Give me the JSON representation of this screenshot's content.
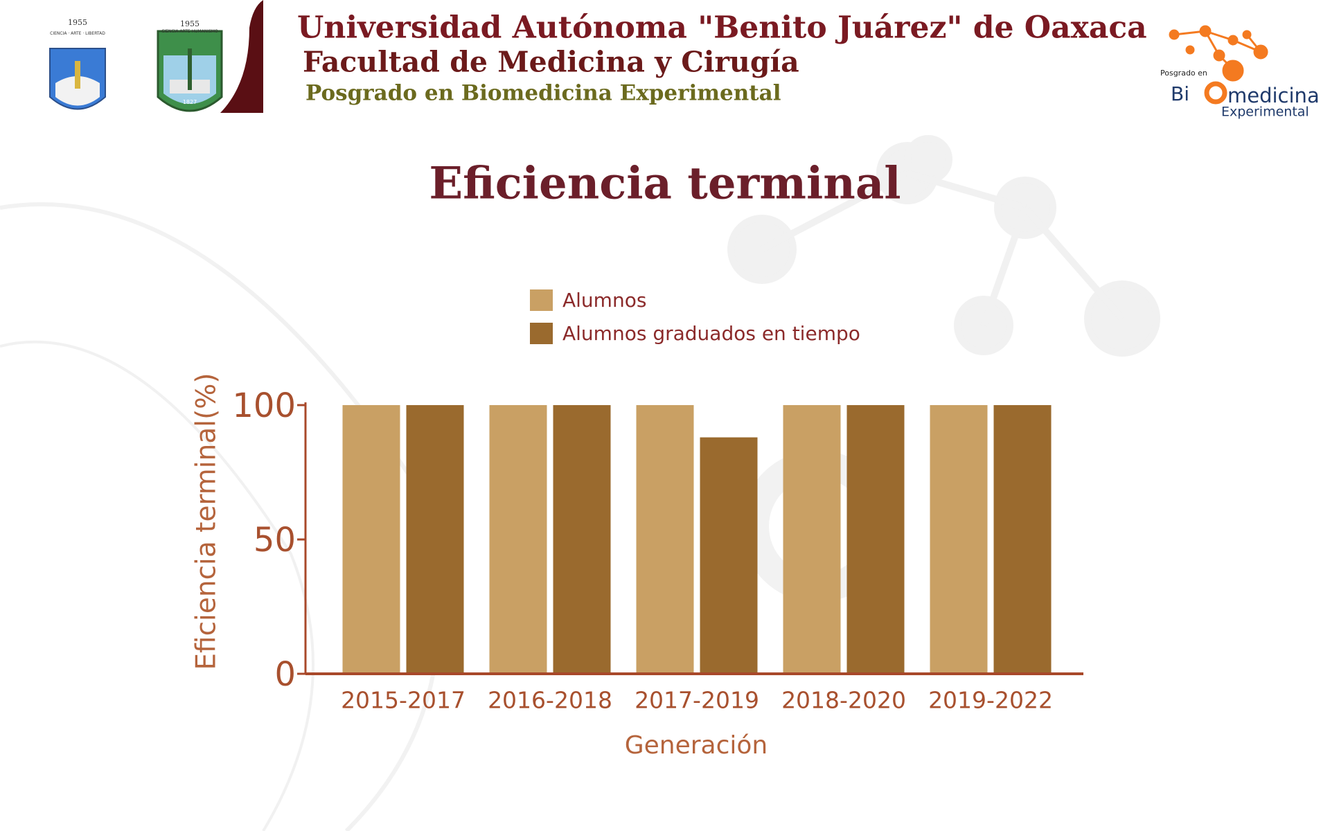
{
  "header": {
    "university": "Universidad Autónoma \"Benito Juárez\" de Oaxaca",
    "faculty": "Facultad de Medicina y Cirugía",
    "program": "Posgrado en Biomedicina Experimental",
    "logo_left_1": {
      "year": "1955",
      "motto": "CIENCIA · ARTE · LIBERTAD"
    },
    "logo_left_2": {
      "year": "1955",
      "motto": "CIENCIA ARTE HUMANISMO",
      "founded": "1827"
    },
    "logo_right": {
      "top": "Posgrado en",
      "bi": "Bi",
      "medicina": "medicina",
      "experimental": "Experimental"
    }
  },
  "chart_data": {
    "type": "bar",
    "title": "Eficiencia terminal",
    "x_label": "Generación",
    "y_label": "Eficiencia terminal(%)",
    "categories": [
      "2015-2017",
      "2016-2018",
      "2017-2019",
      "2018-2020",
      "2019-2022"
    ],
    "series": [
      {
        "name": "Alumnos",
        "color": "#c9a064",
        "values": [
          100,
          100,
          100,
          100,
          100
        ]
      },
      {
        "name": "Alumnos graduados en tiempo",
        "color": "#9a6a2e",
        "values": [
          100,
          100,
          88,
          100,
          100
        ]
      }
    ],
    "ylim": [
      0,
      100
    ],
    "yticks": [
      0,
      50,
      100
    ],
    "legend": "top"
  }
}
